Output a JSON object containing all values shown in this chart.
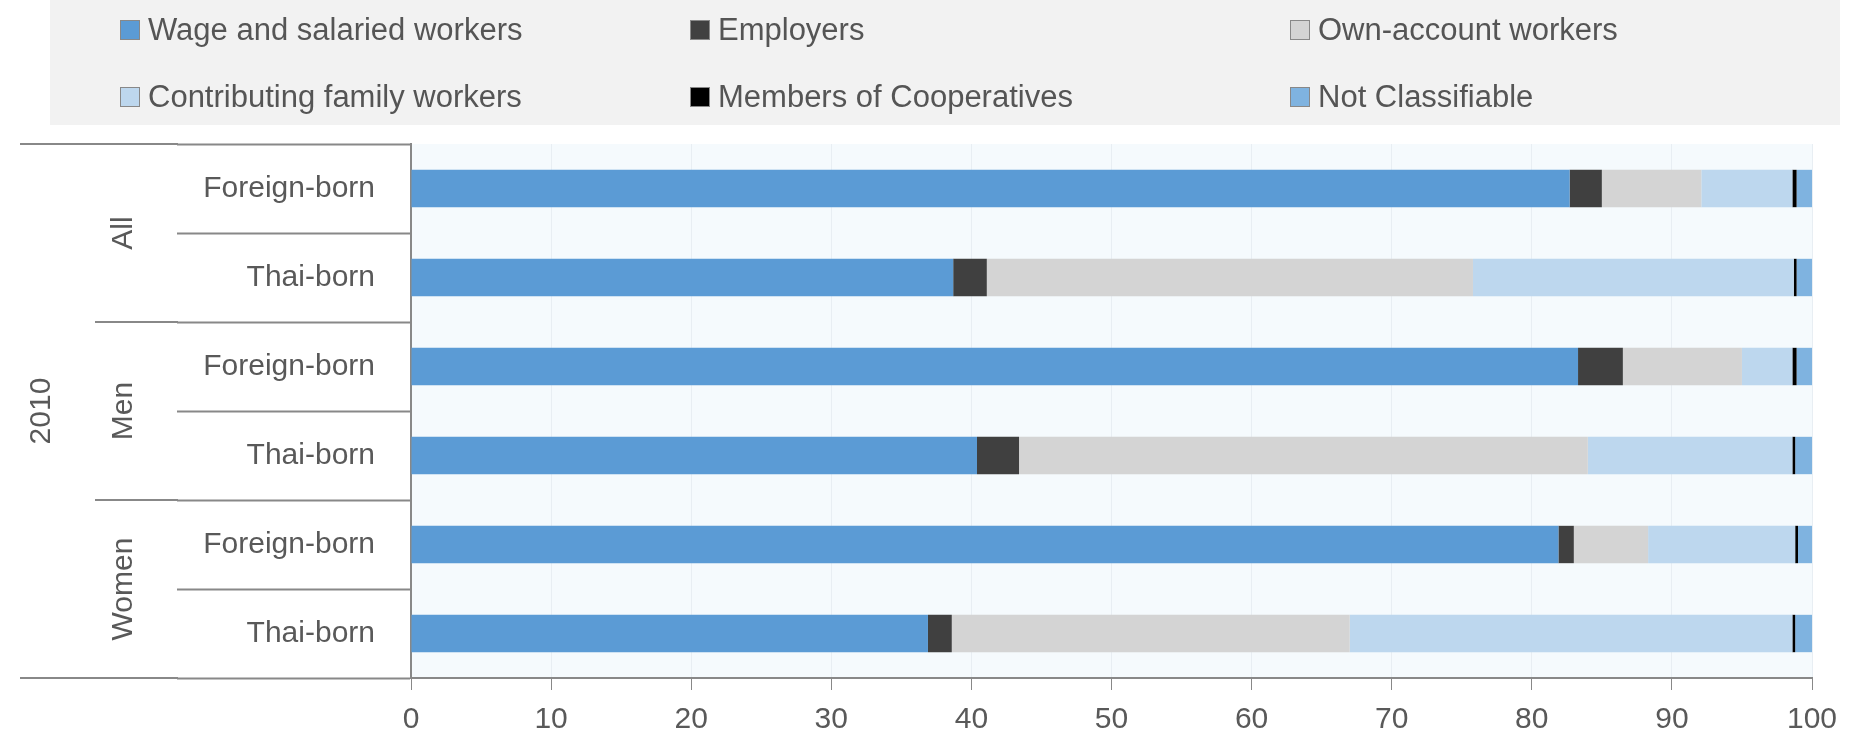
{
  "chart_data": {
    "type": "bar",
    "orientation": "horizontal",
    "stacked": true,
    "categories": [
      "Foreign-born",
      "Thai-born",
      "Foreign-born",
      "Thai-born",
      "Foreign-born",
      "Thai-born"
    ],
    "annotations": [
      "2010",
      "All",
      "Men",
      "Women"
    ],
    "series": [
      {
        "name": "Wage and salaried workers",
        "color": "#5b9bd5",
        "values": [
          82.7,
          38.7,
          83.3,
          40.4,
          81.9,
          36.9
        ]
      },
      {
        "name": "Employers",
        "color": "#404040",
        "values": [
          2.3,
          2.4,
          3.2,
          3.0,
          1.1,
          1.7
        ]
      },
      {
        "name": "Own-account workers",
        "color": "#d4d4d4",
        "values": [
          7.1,
          34.7,
          8.5,
          40.6,
          5.3,
          28.4
        ]
      },
      {
        "name": "Contributing family workers",
        "color": "#bdd7ee",
        "values": [
          6.5,
          22.9,
          3.6,
          14.6,
          10.5,
          31.6
        ]
      },
      {
        "name": "Members of Cooperatives",
        "color": "#000000",
        "values": [
          0.3,
          0.2,
          0.3,
          0.2,
          0.2,
          0.2
        ]
      },
      {
        "name": "Not Classifiable",
        "color": "#7fb3e0",
        "values": [
          1.1,
          1.1,
          1.1,
          1.2,
          1.0,
          1.2
        ]
      }
    ],
    "xlim": [
      0,
      100
    ],
    "xticks": [
      0,
      10,
      20,
      30,
      40,
      50,
      60,
      70,
      80,
      90,
      100
    ],
    "grid": "x",
    "legend": "top"
  }
}
